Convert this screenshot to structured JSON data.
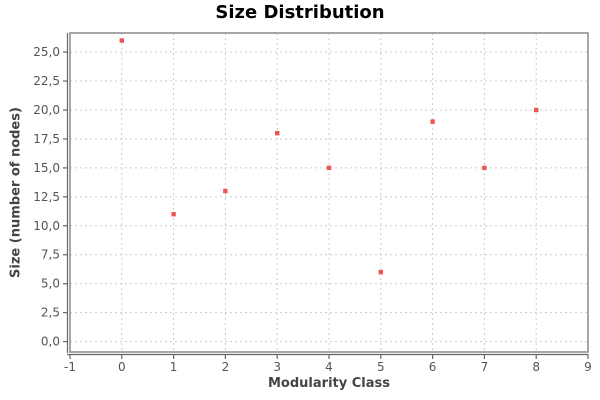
{
  "chart_data": {
    "type": "scatter",
    "title": "Size Distribution",
    "xlabel": "Modularity Class",
    "ylabel": "Size (number of nodes)",
    "x": [
      0,
      1,
      2,
      3,
      4,
      5,
      6,
      7,
      8
    ],
    "y": [
      26,
      11,
      13,
      18,
      15,
      6,
      19,
      15,
      20
    ],
    "xlim": [
      -1,
      9
    ],
    "ylim": [
      -0.9,
      26.65
    ],
    "x_ticks": [
      -1,
      0,
      1,
      2,
      3,
      4,
      5,
      6,
      7,
      8,
      9
    ],
    "x_tick_labels": [
      "-1",
      "0",
      "1",
      "2",
      "3",
      "4",
      "5",
      "6",
      "7",
      "8",
      "9"
    ],
    "y_ticks": [
      0,
      2.5,
      5,
      7.5,
      10,
      12.5,
      15,
      17.5,
      20,
      22.5,
      25
    ],
    "y_tick_labels": [
      "0,0",
      "2,5",
      "5,0",
      "7,5",
      "10,0",
      "12,5",
      "15,0",
      "17,5",
      "20,0",
      "22,5",
      "25,0"
    ],
    "grid": true,
    "legend": false,
    "colors": {
      "point": "#ee5451",
      "grid": "#cccccc",
      "plot_border": "#919191",
      "axis_line": "#666666",
      "tick_label": "#555555",
      "axis_label": "#444444",
      "title": "#000000",
      "background": "#ffffff"
    }
  }
}
